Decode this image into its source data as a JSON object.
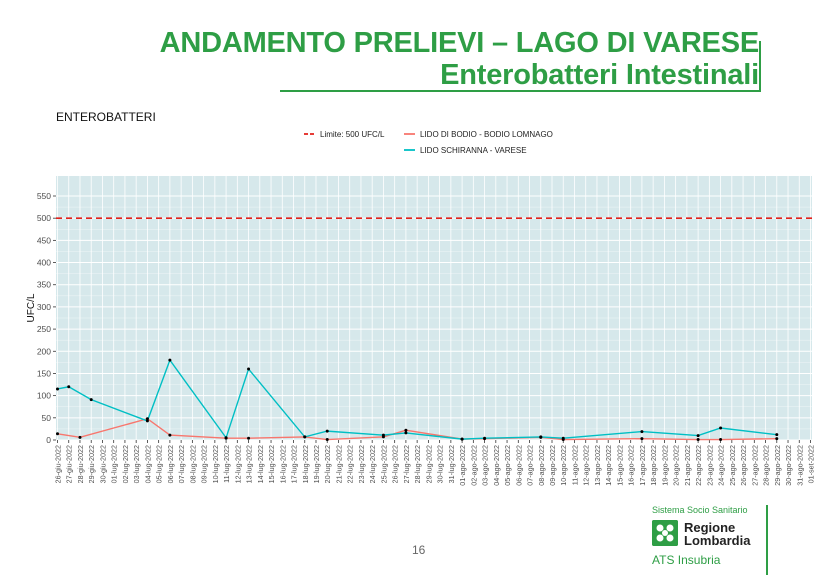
{
  "header": {
    "title_line1": "ANDAMENTO PRELIEVI – LAGO DI VARESE",
    "title_line2": "Enterobatteri Intestinali"
  },
  "page_number": "16",
  "logo": {
    "small": "Sistema Socio Sanitario",
    "name_line1": "Regione",
    "name_line2": "Lombardia",
    "sub": "ATS Insubria"
  },
  "colors": {
    "title_green": "#2e9e45",
    "panel_bg": "#d6e8eb",
    "grid": "#ffffff",
    "limit": "#e3201b",
    "bodio": "#f8766d",
    "schiranna": "#00bfc4"
  },
  "chart_data": {
    "type": "line",
    "title": "ENTEROBATTERI",
    "ylabel": "UFC/L",
    "xlabel": "",
    "ylim": [
      0,
      550
    ],
    "yticks": [
      0,
      50,
      100,
      150,
      200,
      250,
      300,
      350,
      400,
      450,
      500,
      550
    ],
    "grid": true,
    "legend_position": "top",
    "categories": [
      "26-giu-2022",
      "27-giu-2022",
      "28-giu-2022",
      "29-giu-2022",
      "30-giu-2022",
      "01-lug-2022",
      "02-lug-2022",
      "03-lug-2022",
      "04-lug-2022",
      "05-lug-2022",
      "06-lug-2022",
      "07-lug-2022",
      "08-lug-2022",
      "09-lug-2022",
      "10-lug-2022",
      "11-lug-2022",
      "12-lug-2022",
      "13-lug-2022",
      "14-lug-2022",
      "15-lug-2022",
      "16-lug-2022",
      "17-lug-2022",
      "18-lug-2022",
      "19-lug-2022",
      "20-lug-2022",
      "21-lug-2022",
      "22-lug-2022",
      "23-lug-2022",
      "24-lug-2022",
      "25-lug-2022",
      "26-lug-2022",
      "27-lug-2022",
      "28-lug-2022",
      "29-lug-2022",
      "30-lug-2022",
      "31-lug-2022",
      "01-ago-2022",
      "02-ago-2022",
      "03-ago-2022",
      "04-ago-2022",
      "05-ago-2022",
      "06-ago-2022",
      "07-ago-2022",
      "08-ago-2022",
      "09-ago-2022",
      "10-ago-2022",
      "11-ago-2022",
      "12-ago-2022",
      "13-ago-2022",
      "14-ago-2022",
      "15-ago-2022",
      "16-ago-2022",
      "17-ago-2022",
      "18-ago-2022",
      "19-ago-2022",
      "20-ago-2022",
      "21-ago-2022",
      "22-ago-2022",
      "23-ago-2022",
      "24-ago-2022",
      "25-ago-2022",
      "26-ago-2022",
      "27-ago-2022",
      "28-ago-2022",
      "29-ago-2022",
      "30-ago-2022",
      "31-ago-2022",
      "01-set-2022"
    ],
    "limit": {
      "name": "Limite: 500 UFC/L",
      "value": 500
    },
    "series": [
      {
        "name": "LIDO DI BODIO - BODIO LOMNAGO",
        "points": [
          {
            "x": "26-giu-2022",
            "y": 14
          },
          {
            "x": "28-giu-2022",
            "y": 6
          },
          {
            "x": "04-lug-2022",
            "y": 48
          },
          {
            "x": "06-lug-2022",
            "y": 11
          },
          {
            "x": "11-lug-2022",
            "y": 4
          },
          {
            "x": "13-lug-2022",
            "y": 4
          },
          {
            "x": "18-lug-2022",
            "y": 7
          },
          {
            "x": "20-lug-2022",
            "y": 1
          },
          {
            "x": "25-lug-2022",
            "y": 7
          },
          {
            "x": "27-lug-2022",
            "y": 22
          },
          {
            "x": "01-ago-2022",
            "y": 2
          },
          {
            "x": "03-ago-2022",
            "y": 3
          },
          {
            "x": "08-ago-2022",
            "y": 6
          },
          {
            "x": "10-ago-2022",
            "y": 1
          },
          {
            "x": "17-ago-2022",
            "y": 3
          },
          {
            "x": "22-ago-2022",
            "y": 1
          },
          {
            "x": "24-ago-2022",
            "y": 1
          },
          {
            "x": "29-ago-2022",
            "y": 3
          }
        ]
      },
      {
        "name": "LIDO SCHIRANNA - VARESE",
        "points": [
          {
            "x": "26-giu-2022",
            "y": 115
          },
          {
            "x": "27-giu-2022",
            "y": 120
          },
          {
            "x": "29-giu-2022",
            "y": 91
          },
          {
            "x": "04-lug-2022",
            "y": 43
          },
          {
            "x": "06-lug-2022",
            "y": 180
          },
          {
            "x": "11-lug-2022",
            "y": 5
          },
          {
            "x": "13-lug-2022",
            "y": 160
          },
          {
            "x": "18-lug-2022",
            "y": 7
          },
          {
            "x": "20-lug-2022",
            "y": 20
          },
          {
            "x": "25-lug-2022",
            "y": 11
          },
          {
            "x": "27-lug-2022",
            "y": 16
          },
          {
            "x": "01-ago-2022",
            "y": 2
          },
          {
            "x": "03-ago-2022",
            "y": 4
          },
          {
            "x": "08-ago-2022",
            "y": 7
          },
          {
            "x": "10-ago-2022",
            "y": 4
          },
          {
            "x": "17-ago-2022",
            "y": 19
          },
          {
            "x": "22-ago-2022",
            "y": 10
          },
          {
            "x": "24-ago-2022",
            "y": 27
          },
          {
            "x": "29-ago-2022",
            "y": 12
          }
        ]
      }
    ]
  }
}
